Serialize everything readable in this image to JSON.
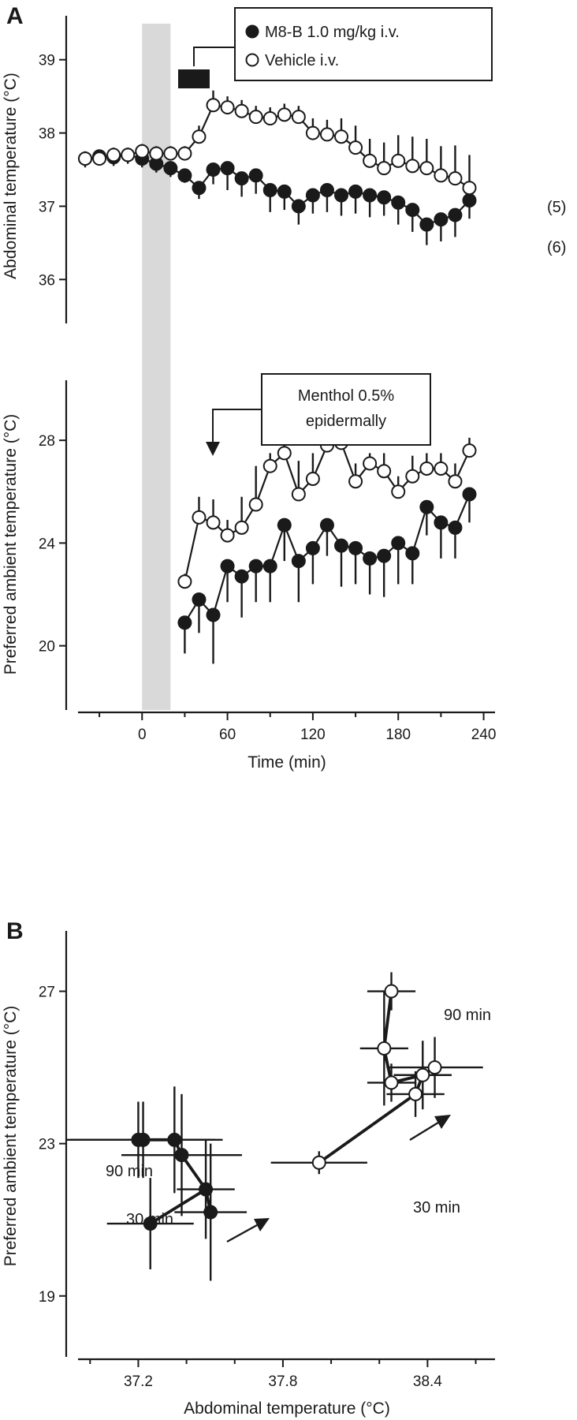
{
  "figure": {
    "panel_a": "A",
    "panel_b": "B",
    "legend": {
      "m8b": "M8-B 1.0 mg/kg i.v.",
      "vehicle": "Vehicle i.v."
    },
    "menthol": {
      "line1": "Menthol 0.5%",
      "line2": "epidermally"
    },
    "n_vehicle": "(5)",
    "n_m8b": "(6)",
    "annot_90_left": "90 min",
    "annot_30_left": "30 min",
    "annot_90_right": "90 min",
    "annot_30_right": "30 min"
  },
  "chart_data": [
    {
      "type": "line",
      "title": "",
      "xlabel": "",
      "ylabel": "Abdominal temperature (°C)",
      "xlim": [
        -45,
        248
      ],
      "ylim": [
        35.4,
        39.6
      ],
      "yticks": [
        36,
        37,
        38,
        39
      ],
      "shaded_region": [
        0,
        20
      ],
      "series": [
        {
          "name": "M8-B 1.0 mg/kg i.v.",
          "marker": "filled",
          "x": [
            -40,
            -30,
            -20,
            -10,
            0,
            10,
            20,
            30,
            40,
            50,
            60,
            70,
            80,
            90,
            100,
            110,
            120,
            130,
            140,
            150,
            160,
            170,
            180,
            190,
            200,
            210,
            220,
            230
          ],
          "y": [
            37.65,
            37.68,
            37.67,
            37.7,
            37.65,
            37.58,
            37.52,
            37.42,
            37.25,
            37.5,
            37.52,
            37.38,
            37.42,
            37.22,
            37.2,
            37.0,
            37.15,
            37.22,
            37.15,
            37.2,
            37.15,
            37.12,
            37.05,
            36.95,
            36.75,
            36.82,
            36.88,
            37.08
          ],
          "error": [
            0.12,
            0.12,
            0.12,
            0.12,
            0.12,
            0.12,
            0.12,
            0.1,
            0.15,
            0.2,
            0.3,
            0.25,
            0.25,
            0.3,
            0.25,
            0.25,
            0.25,
            0.3,
            0.28,
            0.3,
            0.3,
            0.25,
            0.3,
            0.3,
            0.28,
            0.3,
            0.3,
            0.25
          ]
        },
        {
          "name": "Vehicle i.v.",
          "marker": "open",
          "x": [
            -40,
            -30,
            -20,
            -10,
            0,
            10,
            20,
            30,
            40,
            50,
            60,
            70,
            80,
            90,
            100,
            110,
            120,
            130,
            140,
            150,
            160,
            170,
            180,
            190,
            200,
            210,
            220,
            230
          ],
          "y": [
            37.65,
            37.65,
            37.7,
            37.7,
            37.75,
            37.72,
            37.72,
            37.72,
            37.95,
            38.38,
            38.35,
            38.3,
            38.22,
            38.2,
            38.25,
            38.22,
            38.0,
            37.98,
            37.95,
            37.8,
            37.62,
            37.52,
            37.62,
            37.55,
            37.52,
            37.42,
            37.38,
            37.25
          ],
          "error": [
            0.1,
            0.1,
            0.1,
            0.1,
            0.1,
            0.1,
            0.1,
            0.1,
            0.15,
            0.2,
            0.15,
            0.15,
            0.15,
            0.15,
            0.15,
            0.15,
            0.2,
            0.2,
            0.25,
            0.3,
            0.3,
            0.35,
            0.35,
            0.4,
            0.4,
            0.4,
            0.45,
            0.45
          ]
        }
      ]
    },
    {
      "type": "line",
      "title": "",
      "xlabel": "Time (min)",
      "ylabel": "Preferred ambient temperature (°C)",
      "xlim": [
        -45,
        248
      ],
      "xticks": [
        0,
        60,
        120,
        180,
        240
      ],
      "ylim": [
        17.5,
        30.4
      ],
      "yticks": [
        20,
        24,
        28
      ],
      "series": [
        {
          "name": "M8-B 1.0 mg/kg i.v.",
          "marker": "filled",
          "x": [
            30,
            40,
            50,
            60,
            70,
            80,
            90,
            100,
            110,
            120,
            130,
            140,
            150,
            160,
            170,
            180,
            190,
            200,
            210,
            220,
            230
          ],
          "y": [
            20.9,
            21.8,
            21.2,
            23.1,
            22.7,
            23.1,
            23.1,
            24.7,
            23.3,
            23.8,
            24.7,
            23.9,
            23.8,
            23.4,
            23.5,
            24.0,
            23.6,
            25.4,
            24.8,
            24.6,
            25.9
          ],
          "error": [
            1.2,
            1.3,
            1.9,
            1.4,
            1.6,
            1.4,
            1.4,
            1.4,
            1.6,
            1.4,
            1.2,
            1.6,
            1.4,
            1.4,
            1.6,
            1.6,
            1.2,
            1.1,
            1.4,
            1.2,
            1.1
          ]
        },
        {
          "name": "Vehicle i.v.",
          "marker": "open",
          "x": [
            30,
            40,
            50,
            60,
            70,
            80,
            90,
            100,
            110,
            120,
            130,
            140,
            150,
            160,
            170,
            180,
            190,
            200,
            210,
            220,
            230
          ],
          "y": [
            22.5,
            25.0,
            24.8,
            24.3,
            24.6,
            25.5,
            27.0,
            27.5,
            25.9,
            26.5,
            27.8,
            27.9,
            26.4,
            27.1,
            26.8,
            26.0,
            26.6,
            26.9,
            26.9,
            26.4,
            27.6
          ],
          "error": [
            0.3,
            0.8,
            0.9,
            0.6,
            1.2,
            1.5,
            0.5,
            0.6,
            1.3,
            1.0,
            0.4,
            0.4,
            0.7,
            0.4,
            0.7,
            0.6,
            0.8,
            0.6,
            0.6,
            0.7,
            0.5
          ]
        }
      ]
    },
    {
      "type": "scatter",
      "title": "",
      "xlabel": "Abdominal temperature (°C)",
      "ylabel": "Preferred ambient temperature (°C)",
      "xlim": [
        36.95,
        38.68
      ],
      "xticks": [
        37.2,
        37.8,
        38.4
      ],
      "ylim": [
        17.4,
        29.0
      ],
      "yticks": [
        19,
        23,
        27
      ],
      "series": [
        {
          "name": "M8-B 1.0 mg/kg i.v.",
          "marker": "filled",
          "points": [
            {
              "x": 37.25,
              "y": 20.9,
              "xerr": 0.18,
              "yerr": 1.2
            },
            {
              "x": 37.5,
              "y": 21.2,
              "xerr": 0.15,
              "yerr": 1.8
            },
            {
              "x": 37.48,
              "y": 21.8,
              "xerr": 0.12,
              "yerr": 1.3
            },
            {
              "x": 37.38,
              "y": 22.7,
              "xerr": 0.25,
              "yerr": 1.6
            },
            {
              "x": 37.35,
              "y": 23.1,
              "xerr": 0.2,
              "yerr": 1.4
            },
            {
              "x": 37.22,
              "y": 23.1,
              "xerr": 0.3,
              "yerr": 1.0
            },
            {
              "x": 37.2,
              "y": 23.1,
              "xerr": 0.3,
              "yerr": 1.0
            }
          ],
          "path": [
            [
              37.25,
              20.9
            ],
            [
              37.48,
              21.8
            ],
            [
              37.5,
              21.2
            ],
            [
              37.48,
              21.8
            ],
            [
              37.38,
              22.7
            ],
            [
              37.35,
              23.1
            ],
            [
              37.22,
              23.1
            ]
          ]
        },
        {
          "name": "Vehicle i.v.",
          "marker": "open",
          "points": [
            {
              "x": 37.95,
              "y": 22.5,
              "xerr": 0.2,
              "yerr": 0.3
            },
            {
              "x": 38.35,
              "y": 24.3,
              "xerr": 0.12,
              "yerr": 0.6
            },
            {
              "x": 38.38,
              "y": 24.8,
              "xerr": 0.12,
              "yerr": 0.9
            },
            {
              "x": 38.25,
              "y": 24.6,
              "xerr": 0.1,
              "yerr": 0.5
            },
            {
              "x": 38.43,
              "y": 25.0,
              "xerr": 0.2,
              "yerr": 0.8
            },
            {
              "x": 38.22,
              "y": 25.5,
              "xerr": 0.1,
              "yerr": 1.5
            },
            {
              "x": 38.25,
              "y": 27.0,
              "xerr": 0.1,
              "yerr": 0.5
            }
          ],
          "path": [
            [
              37.95,
              22.5
            ],
            [
              38.35,
              24.3
            ],
            [
              38.38,
              24.8
            ],
            [
              38.43,
              25.0
            ],
            [
              38.38,
              24.8
            ],
            [
              38.25,
              24.6
            ],
            [
              38.22,
              25.5
            ],
            [
              38.25,
              27.0
            ]
          ]
        }
      ]
    }
  ]
}
